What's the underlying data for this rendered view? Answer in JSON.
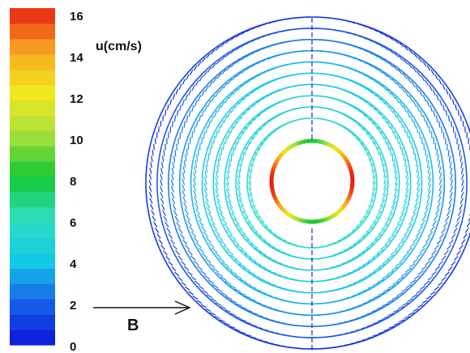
{
  "chart_data": {
    "type": "vector-field",
    "colorbar": {
      "label": "u(cm/s)",
      "min": 0,
      "max": 16,
      "levels": 22,
      "ticks": [
        "16",
        "14",
        "12",
        "10",
        "8",
        "6",
        "4",
        "2",
        "0"
      ],
      "stops": [
        {
          "value": 0,
          "color": "#0a14d8"
        },
        {
          "value": 2,
          "color": "#1560e8"
        },
        {
          "value": 4,
          "color": "#14c8e8"
        },
        {
          "value": 6,
          "color": "#30e0c0"
        },
        {
          "value": 8,
          "color": "#10c830"
        },
        {
          "value": 10,
          "color": "#a8e03c"
        },
        {
          "value": 12,
          "color": "#f2e81e"
        },
        {
          "value": 14,
          "color": "#f7a820"
        },
        {
          "value": 16,
          "color": "#e81e10"
        }
      ]
    },
    "annotation": {
      "label": "B"
    },
    "field": {
      "description_units": "cm/s",
      "rings": [
        {
          "speed": 0.8
        },
        {
          "speed": 1.6
        },
        {
          "speed": 2.4
        },
        {
          "speed": 3.0
        },
        {
          "speed": 3.6
        },
        {
          "speed": 4.0
        },
        {
          "speed": 4.4
        },
        {
          "speed": 4.6
        },
        {
          "speed": 5.0
        },
        {
          "speed": 5.4
        }
      ],
      "inner_ring": {
        "speed_min": 8,
        "speed_max": 16
      }
    }
  }
}
